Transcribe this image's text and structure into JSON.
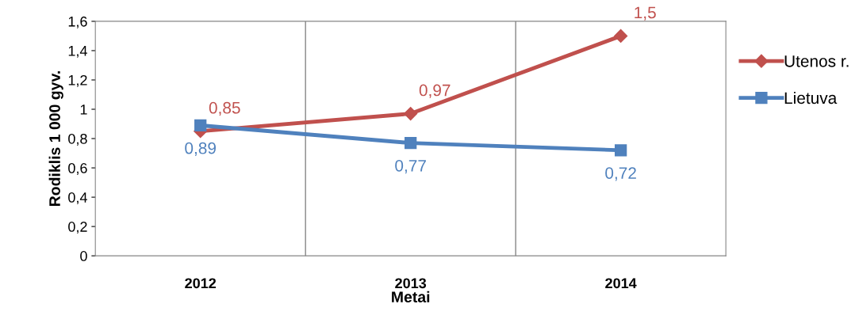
{
  "chart_data": {
    "type": "line",
    "xlabel": "Metai",
    "ylabel": "Rodiklis 1 000 gyv.",
    "categories": [
      "2012",
      "2013",
      "2014"
    ],
    "series": [
      {
        "name": "Utenos r.",
        "color": "#c0504d",
        "marker": "diamond",
        "values": [
          0.85,
          0.97,
          1.5
        ],
        "value_labels": [
          "0,85",
          "0,97",
          "1,5"
        ]
      },
      {
        "name": "Lietuva",
        "color": "#4f81bd",
        "marker": "square",
        "values": [
          0.89,
          0.77,
          0.72
        ],
        "value_labels": [
          "0,89",
          "0,77",
          "0,72"
        ]
      }
    ],
    "ylim": [
      0,
      1.6
    ],
    "yticks": [
      0,
      {
        "value": 0.2,
        "label": "0,2"
      },
      {
        "value": 0.4,
        "label": "0,4"
      },
      {
        "value": 0.6,
        "label": "0,6"
      },
      {
        "value": 0.8,
        "label": "0,8"
      },
      1,
      {
        "value": 1.2,
        "label": "1,2"
      },
      {
        "value": 1.4,
        "label": "1,4"
      },
      {
        "value": 1.6,
        "label": "1,6"
      }
    ],
    "grid": "x",
    "legend": "right",
    "line_style": "solid"
  }
}
